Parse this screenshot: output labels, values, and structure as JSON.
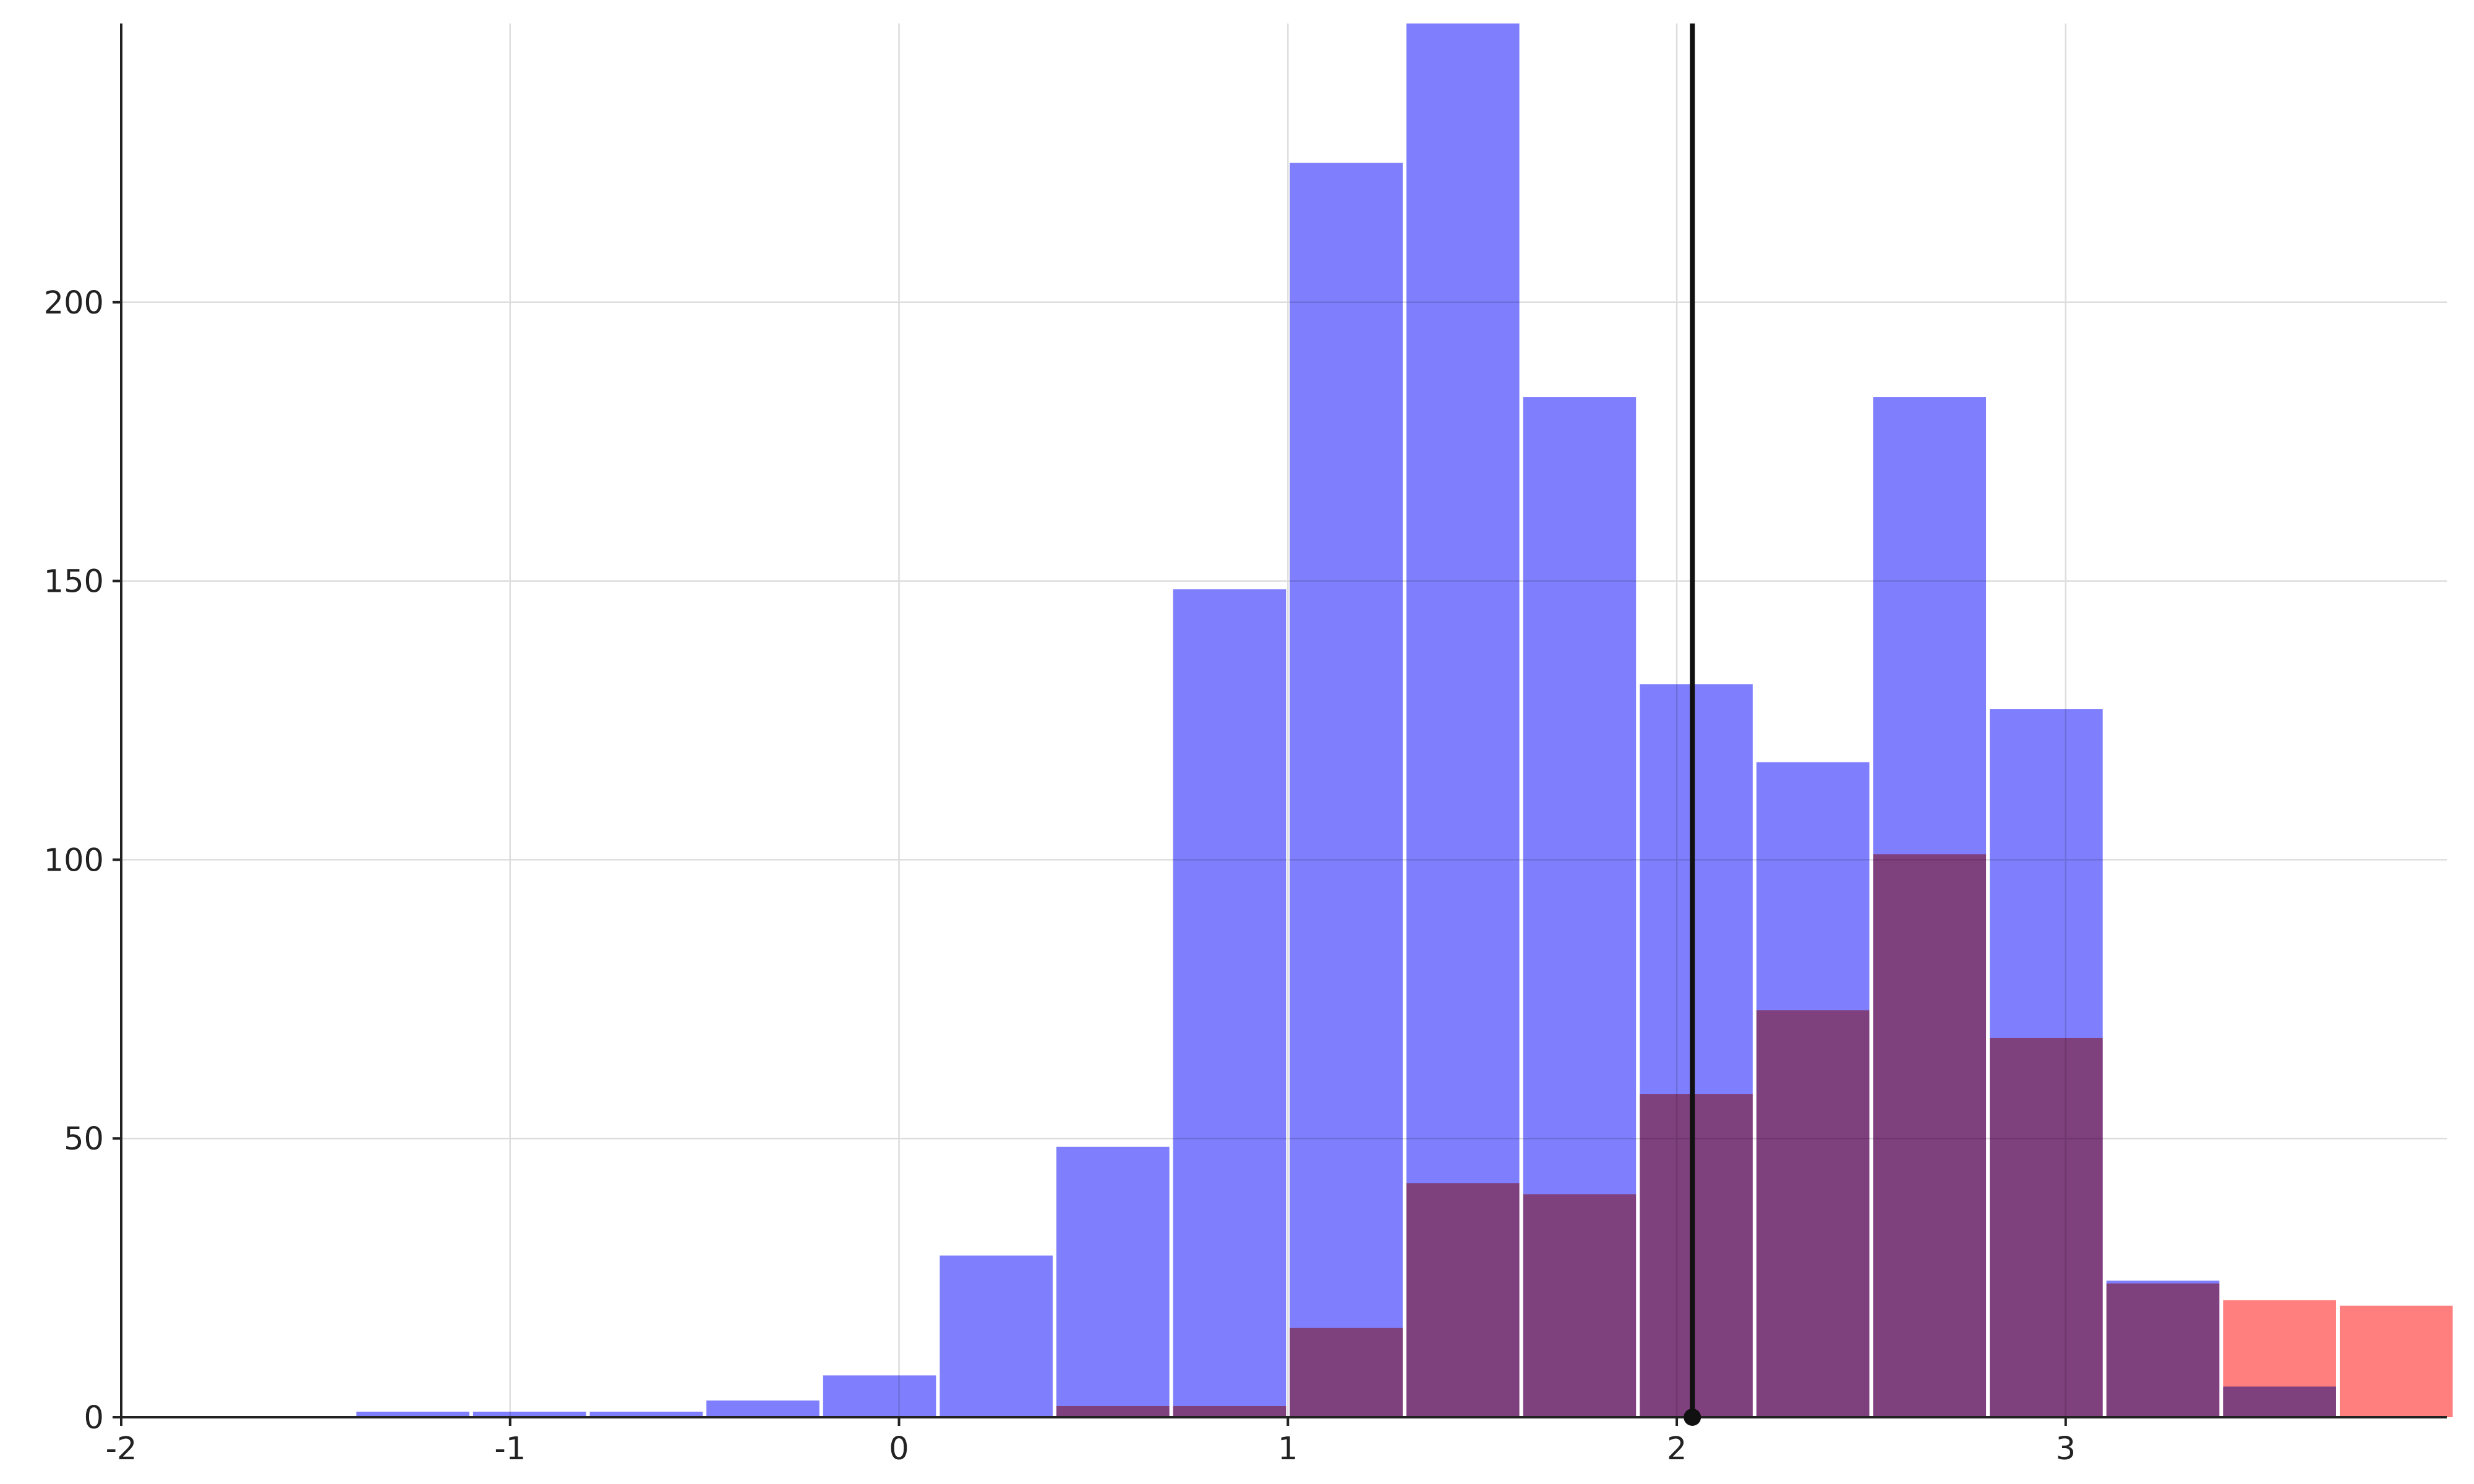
{
  "chart_data": {
    "type": "bar",
    "title": "",
    "xlabel": "",
    "ylabel": "",
    "xlim": [
      -2,
      3.98
    ],
    "ylim": [
      0,
      250
    ],
    "grid": true,
    "legend": "none",
    "x_ticks": [
      "-2",
      "-1",
      "0",
      "1",
      "2",
      "3"
    ],
    "y_ticks": [
      "0",
      "50",
      "100",
      "150",
      "200"
    ],
    "bin_edges": [
      -1.4,
      -1.1,
      -0.8,
      -0.5,
      -0.2,
      0.1,
      0.4,
      0.7,
      1.0,
      1.3,
      1.6,
      1.9,
      2.2,
      2.5,
      2.8,
      3.1,
      3.4,
      3.7,
      4.0
    ],
    "series": [
      {
        "color": "#7f7ffd",
        "values": [
          1,
          1,
          1,
          3,
          7.5,
          29,
          48.5,
          148.5,
          225,
          250,
          183,
          131.5,
          117.5,
          183,
          127,
          24.5,
          5.5,
          0
        ]
      },
      {
        "color": "#ff7f7f",
        "values": [
          0,
          0,
          0,
          0,
          0,
          0,
          2,
          2,
          16,
          42,
          40,
          58,
          73,
          101,
          68,
          24,
          21,
          20
        ]
      }
    ],
    "reference_line": {
      "x": 2.04,
      "color": "#111111"
    }
  }
}
